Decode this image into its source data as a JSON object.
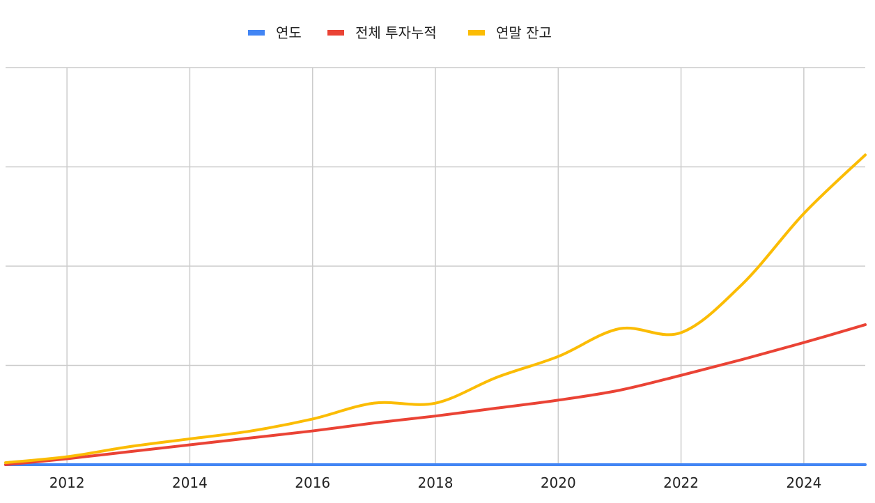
{
  "chart_data": {
    "type": "line",
    "title": "",
    "xlabel": "",
    "ylabel": "",
    "legend_position": "top-center",
    "x": [
      2011,
      2012,
      2013,
      2014,
      2015,
      2016,
      2017,
      2018,
      2019,
      2020,
      2021,
      2022,
      2023,
      2024,
      2025
    ],
    "xticks": [
      2012,
      2014,
      2016,
      2018,
      2020,
      2022,
      2024
    ],
    "xticks_labels": [
      "2012",
      "2014",
      "2016",
      "2018",
      "2020",
      "2022",
      "2024"
    ],
    "xlim": [
      2011,
      2025
    ],
    "ylim": [
      0,
      400
    ],
    "ygrid": [
      0,
      100,
      200,
      300,
      400
    ],
    "grid": true,
    "series": [
      {
        "name": "연도",
        "color": "#4285F4",
        "values": [
          0,
          0,
          0,
          0,
          0,
          0,
          0,
          0,
          0,
          0,
          0,
          0,
          0,
          0,
          0
        ]
      },
      {
        "name": "전체 투자누적",
        "color": "#EA4335",
        "values": [
          0,
          6,
          13,
          20,
          27,
          34,
          42,
          49,
          57,
          65,
          75,
          90,
          106,
          123,
          141
        ]
      },
      {
        "name": "연말 잔고",
        "color": "#FBBC04",
        "values": [
          2,
          8,
          18,
          26,
          34,
          46,
          62,
          62,
          88,
          109,
          137,
          133,
          182,
          253,
          312
        ]
      }
    ]
  }
}
